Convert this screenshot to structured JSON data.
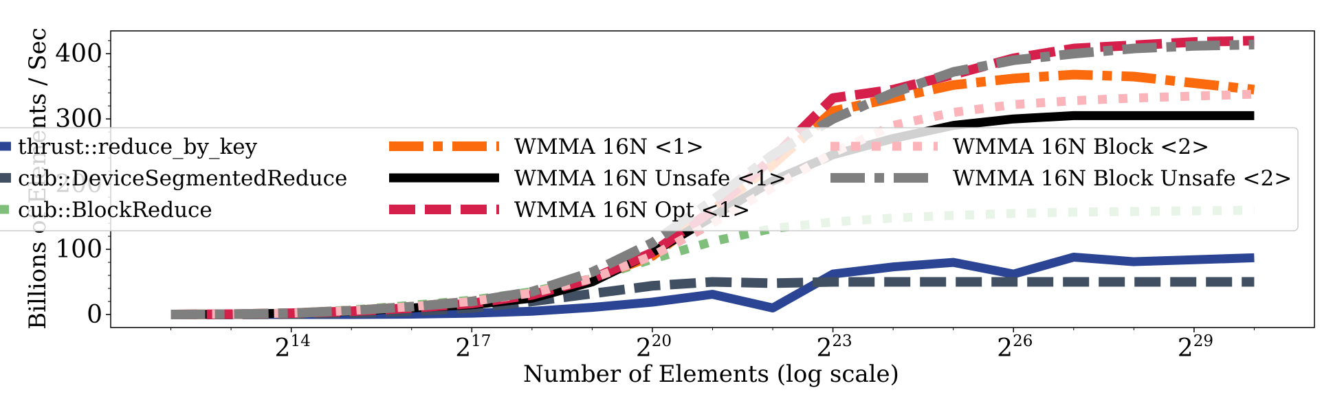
{
  "chart_data": {
    "type": "line",
    "title": "",
    "xlabel": "Number of Elements (log scale)",
    "ylabel": "Billions of Elements / Sec",
    "x_scale": "log2",
    "x_exponents": [
      12,
      13,
      14,
      15,
      16,
      17,
      18,
      19,
      20,
      21,
      22,
      23,
      24,
      25,
      26,
      27,
      28,
      29,
      30
    ],
    "xlim_exponent": [
      11,
      31
    ],
    "xticks": [
      {
        "base": "2",
        "exp": "14",
        "value": 14
      },
      {
        "base": "2",
        "exp": "17",
        "value": 17
      },
      {
        "base": "2",
        "exp": "20",
        "value": 20
      },
      {
        "base": "2",
        "exp": "23",
        "value": 23
      },
      {
        "base": "2",
        "exp": "26",
        "value": 26
      },
      {
        "base": "2",
        "exp": "29",
        "value": 29
      }
    ],
    "ylim": [
      -20,
      435
    ],
    "yticks": [
      {
        "label": "0",
        "value": 0
      },
      {
        "label": "100",
        "value": 100
      },
      {
        "label": "200",
        "value": 200
      },
      {
        "label": "300",
        "value": 300
      },
      {
        "label": "400",
        "value": 400
      }
    ],
    "grid": false,
    "legend_placement": "center",
    "series": [
      {
        "name": "thrust::reduce_by_key",
        "color": "#2b4594",
        "style": "solid",
        "values": [
          0,
          0,
          0,
          0,
          0.5,
          2,
          5,
          11,
          19,
          31,
          10,
          62,
          73,
          80,
          62,
          88,
          81,
          84,
          87
        ]
      },
      {
        "name": "cub::DeviceSegmentedReduce",
        "color": "#414f62",
        "style": "dashed",
        "values": [
          0,
          0,
          0.5,
          2,
          5,
          10,
          20,
          32,
          44,
          50,
          48,
          50,
          50,
          50,
          50,
          50,
          50,
          50,
          50
        ]
      },
      {
        "name": "cub::BlockReduce",
        "color": "#7fbf7b",
        "style": "dotted",
        "values": [
          0,
          0.5,
          2,
          7,
          14,
          22,
          35,
          55,
          85,
          112,
          132,
          142,
          148,
          152,
          155,
          157,
          158,
          159,
          160
        ]
      },
      {
        "name": "WMMA 16N <1>",
        "color": "#fb6a0d",
        "style": "dashdot",
        "values": [
          0,
          0.5,
          2,
          6,
          12,
          20,
          33,
          55,
          90,
          160,
          230,
          312,
          332,
          352,
          362,
          368,
          365,
          355,
          345
        ]
      },
      {
        "name": "WMMA 16N Unsafe <1>",
        "color": "#000000",
        "style": "solid",
        "values": [
          0,
          0.5,
          2,
          5,
          10,
          15,
          25,
          50,
          95,
          150,
          205,
          245,
          270,
          290,
          300,
          305,
          305,
          305,
          305
        ]
      },
      {
        "name": "WMMA 16N Opt <1>",
        "color": "#d6204c",
        "style": "dashed",
        "values": [
          0,
          0.5,
          2,
          5,
          10,
          17,
          30,
          55,
          95,
          160,
          240,
          332,
          345,
          368,
          393,
          408,
          413,
          418,
          420
        ]
      },
      {
        "name": "WMMA 16N Block <2>",
        "color": "#fbb4b9",
        "style": "dotted",
        "values": [
          0,
          0.5,
          2,
          6,
          12,
          20,
          33,
          55,
          90,
          140,
          195,
          248,
          290,
          310,
          322,
          328,
          332,
          335,
          338
        ]
      },
      {
        "name": "WMMA 16N Block Unsafe <2>",
        "color": "#7f7f7f",
        "style": "dashdot",
        "values": [
          0,
          0.5,
          2,
          6,
          12,
          20,
          35,
          65,
          110,
          175,
          245,
          300,
          340,
          372,
          390,
          400,
          408,
          412,
          414
        ]
      }
    ]
  }
}
